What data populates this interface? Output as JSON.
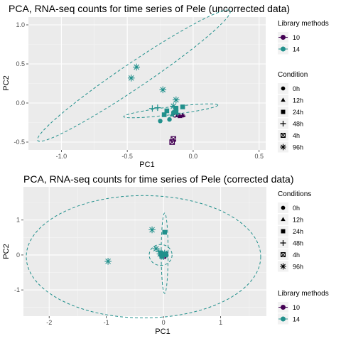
{
  "colors": {
    "lib10": "#440154",
    "lib14": "#21908C",
    "panel_bg": "#EBEBEB",
    "grid_major": "#FFFFFF",
    "tick_text": "#4D4D4D"
  },
  "chart_data": [
    {
      "type": "scatter",
      "title": "PCA, RNA-seq counts for time series of Pele (uncorrected data)",
      "xlabel": "PC1",
      "ylabel": "PC2",
      "xlim": [
        -1.25,
        0.55
      ],
      "ylim": [
        -0.6,
        1.1
      ],
      "x_ticks": [
        {
          "v": -1.0,
          "label": "-1.0"
        },
        {
          "v": -0.5,
          "label": "-0.5"
        },
        {
          "v": 0.0,
          "label": "0.0"
        },
        {
          "v": 0.5,
          "label": "0.5"
        }
      ],
      "y_ticks": [
        {
          "v": -0.5,
          "label": "-0.5"
        },
        {
          "v": 0.0,
          "label": "0.0"
        },
        {
          "v": 0.5,
          "label": "0.5"
        },
        {
          "v": 1.0,
          "label": "1.0"
        }
      ],
      "grid": true,
      "series": [
        {
          "name": "10",
          "ellipse": {
            "cx": -0.11,
            "cy": -0.165,
            "rx": 0.05,
            "ry": 0.022,
            "angle": 0
          },
          "points": [
            {
              "x": -0.12,
              "y": -0.16,
              "shape": "triangle"
            },
            {
              "x": -0.1,
              "y": -0.17,
              "shape": "triangle"
            },
            {
              "x": -0.08,
              "y": -0.16,
              "shape": "triangle"
            },
            {
              "x": -0.15,
              "y": -0.46,
              "shape": "boxx"
            },
            {
              "x": -0.16,
              "y": -0.5,
              "shape": "boxx"
            }
          ]
        },
        {
          "name": "14",
          "ellipse": {
            "cx": -0.45,
            "cy": 0.35,
            "rx": 0.88,
            "ry": 0.16,
            "angle": 34
          },
          "ellipse2": {
            "cx": -0.17,
            "cy": -0.1,
            "rx": 0.36,
            "ry": 0.05,
            "angle": 7
          },
          "points": [
            {
              "x": -0.25,
              "y": -0.23,
              "shape": "circle"
            },
            {
              "x": -0.18,
              "y": -0.21,
              "shape": "circle"
            },
            {
              "x": -0.15,
              "y": -0.12,
              "shape": "circle"
            },
            {
              "x": -0.16,
              "y": -0.15,
              "shape": "triangle"
            },
            {
              "x": -0.2,
              "y": -0.1,
              "shape": "square"
            },
            {
              "x": -0.13,
              "y": -0.12,
              "shape": "square"
            },
            {
              "x": -0.08,
              "y": -0.05,
              "shape": "square"
            },
            {
              "x": -0.13,
              "y": -0.07,
              "shape": "square"
            },
            {
              "x": -0.22,
              "y": -0.15,
              "shape": "square"
            },
            {
              "x": -0.27,
              "y": -0.06,
              "shape": "plus"
            },
            {
              "x": -0.31,
              "y": -0.07,
              "shape": "plus"
            },
            {
              "x": -0.12,
              "y": -0.13,
              "shape": "plus"
            },
            {
              "x": -0.47,
              "y": 0.32,
              "shape": "star"
            },
            {
              "x": -0.43,
              "y": 0.46,
              "shape": "star"
            },
            {
              "x": -0.23,
              "y": 0.17,
              "shape": "star"
            },
            {
              "x": -0.13,
              "y": 0.04,
              "shape": "star"
            },
            {
              "x": -0.15,
              "y": -0.04,
              "shape": "star"
            }
          ]
        }
      ],
      "legends": [
        {
          "title": "Library methods",
          "items": [
            {
              "label": "10",
              "kind": "color",
              "color_key": "lib10"
            },
            {
              "label": "14",
              "kind": "color",
              "color_key": "lib14"
            }
          ]
        },
        {
          "title": "Condition",
          "items": [
            {
              "label": "0h",
              "kind": "shape",
              "shape": "circle"
            },
            {
              "label": "12h",
              "kind": "shape",
              "shape": "triangle"
            },
            {
              "label": "24h",
              "kind": "shape",
              "shape": "square"
            },
            {
              "label": "48h",
              "kind": "shape",
              "shape": "plus"
            },
            {
              "label": "4h",
              "kind": "shape",
              "shape": "boxx"
            },
            {
              "label": "96h",
              "kind": "shape",
              "shape": "star"
            }
          ]
        }
      ]
    },
    {
      "type": "scatter",
      "title": "PCA, RNA-seq counts for time series of Pele (corrected data)",
      "xlabel": "PC1",
      "ylabel": "PC2",
      "xlim": [
        -2.45,
        1.8
      ],
      "ylim": [
        -1.75,
        1.95
      ],
      "x_ticks": [
        {
          "v": -2,
          "label": "-2"
        },
        {
          "v": -1,
          "label": "-1"
        },
        {
          "v": 0,
          "label": "0"
        },
        {
          "v": 1,
          "label": "1"
        }
      ],
      "y_ticks": [
        {
          "v": -1,
          "label": "-1"
        },
        {
          "v": 0,
          "label": "0"
        },
        {
          "v": 1,
          "label": "1"
        }
      ],
      "grid": true,
      "series": [
        {
          "name": "10",
          "ellipse": {
            "cx": -0.01,
            "cy": 0.0,
            "rx": 0.06,
            "ry": 0.08,
            "angle": 0
          },
          "points": [
            {
              "x": -0.05,
              "y": 0.02,
              "shape": "triangle"
            },
            {
              "x": 0.02,
              "y": -0.02,
              "shape": "triangle"
            },
            {
              "x": -0.02,
              "y": 0.04,
              "shape": "triangle"
            },
            {
              "x": 0.0,
              "y": -0.03,
              "shape": "boxx"
            },
            {
              "x": 0.03,
              "y": 0.01,
              "shape": "boxx"
            }
          ]
        },
        {
          "name": "14",
          "ellipse": {
            "cx": -0.35,
            "cy": -0.05,
            "rx": 2.05,
            "ry": 1.75,
            "angle": 0
          },
          "ellipse2": {
            "cx": 0.02,
            "cy": 0.05,
            "rx": 0.06,
            "ry": 1.15,
            "angle": 0
          },
          "ellipse3": {
            "cx": -0.05,
            "cy": 0.0,
            "rx": 0.2,
            "ry": 0.3,
            "angle": 0
          },
          "points": [
            {
              "x": -0.04,
              "y": -0.02,
              "shape": "circle"
            },
            {
              "x": 0.02,
              "y": 0.02,
              "shape": "circle"
            },
            {
              "x": 0.05,
              "y": -0.01,
              "shape": "circle"
            },
            {
              "x": -0.02,
              "y": 0.0,
              "shape": "triangle"
            },
            {
              "x": 0.02,
              "y": 0.65,
              "shape": "square"
            },
            {
              "x": -0.05,
              "y": 0.06,
              "shape": "square"
            },
            {
              "x": 0.03,
              "y": 0.03,
              "shape": "square"
            },
            {
              "x": -0.03,
              "y": -0.04,
              "shape": "square"
            },
            {
              "x": -0.08,
              "y": 0.1,
              "shape": "plus"
            },
            {
              "x": 0.0,
              "y": -0.05,
              "shape": "plus"
            },
            {
              "x": -0.04,
              "y": 0.08,
              "shape": "plus"
            },
            {
              "x": -0.97,
              "y": -0.18,
              "shape": "star"
            },
            {
              "x": -0.2,
              "y": 0.72,
              "shape": "star"
            },
            {
              "x": -0.13,
              "y": 0.18,
              "shape": "star"
            },
            {
              "x": -0.06,
              "y": 0.03,
              "shape": "star"
            },
            {
              "x": 0.02,
              "y": 0.05,
              "shape": "star"
            }
          ]
        }
      ],
      "legends": [
        {
          "title": "Conditions",
          "items": [
            {
              "label": "0h",
              "kind": "shape",
              "shape": "circle"
            },
            {
              "label": "12h",
              "kind": "shape",
              "shape": "triangle"
            },
            {
              "label": "24h",
              "kind": "shape",
              "shape": "square"
            },
            {
              "label": "48h",
              "kind": "shape",
              "shape": "plus"
            },
            {
              "label": "4h",
              "kind": "shape",
              "shape": "boxx"
            },
            {
              "label": "96h",
              "kind": "shape",
              "shape": "star"
            }
          ]
        },
        {
          "title": "Library methods",
          "items": [
            {
              "label": "10",
              "kind": "color",
              "color_key": "lib10"
            },
            {
              "label": "14",
              "kind": "color",
              "color_key": "lib14"
            }
          ]
        }
      ]
    }
  ]
}
